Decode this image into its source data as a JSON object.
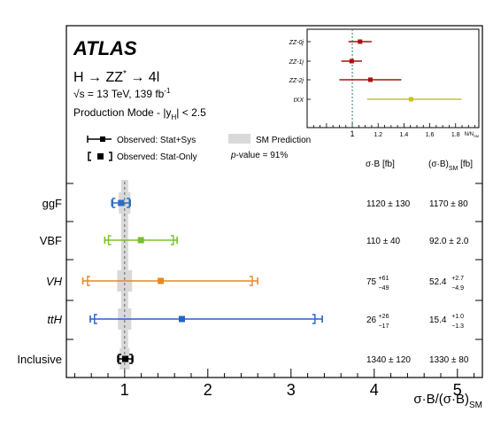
{
  "header": {
    "experiment": "ATLAS",
    "process_parts": [
      "H → ZZ",
      "*",
      " → 4l"
    ],
    "energy_prefix": "√s = 13 TeV, 139 fb",
    "energy_sup": "-1",
    "mode_prefix": "Production Mode - |y",
    "mode_sub": "H",
    "mode_suffix": "| < 2.5"
  },
  "legend": {
    "observed_stat_sys": "Observed: Stat+Sys",
    "observed_stat_only": "Observed: Stat-Only",
    "sm_prediction": "SM Prediction",
    "pvalue_prefix": "p",
    "pvalue_suffix": "-value = 91%"
  },
  "table_headers": {
    "sigma_b": "σ·B [fb]",
    "sigma_b_sm": "(σ·B)",
    "sm_sub": "SM",
    "sm_unit": " [fb]"
  },
  "colors": {
    "ggF": "#2c6fbf",
    "VBF": "#78c032",
    "VH": "#e58a1f",
    "ttH": "#2563c8",
    "Inclusive": "#000000",
    "sm_band": "#d9d9d9",
    "inset_red": "#aa1111",
    "inset_tXX": "#c8c220",
    "inset_vline": "#2e7d6b"
  },
  "chart_data": [
    {
      "type": "scatter",
      "title": "",
      "xlabel": "σ·B/(σ·B)SM",
      "xlabel_parts": [
        "σ·B/(σ·B)",
        "SM"
      ],
      "xlim": [
        0.3,
        5.3
      ],
      "xticks": [
        "1",
        "2",
        "3",
        "4",
        "5"
      ],
      "reference_line": 1,
      "categories": [
        "ggF",
        "VBF",
        "VH",
        "ttH",
        "Inclusive"
      ],
      "category_italic": [
        false,
        false,
        true,
        true,
        false
      ],
      "series": [
        {
          "name": "Observed: Stat+Sys",
          "values": [
            0.957,
            1.196,
            1.434,
            1.688,
            1.008
          ],
          "err_low": [
            0.111,
            0.435,
            0.937,
            1.101,
            0.09
          ],
          "err_high": [
            0.111,
            0.435,
            1.165,
            1.688,
            0.09
          ]
        },
        {
          "name": "Observed: Stat-Only",
          "values": [
            0.957,
            1.196,
            1.434,
            1.688,
            1.008
          ],
          "err_low": [
            0.1,
            0.39,
            0.88,
            1.05,
            0.08
          ],
          "err_high": [
            0.1,
            0.39,
            1.1,
            1.6,
            0.08
          ]
        }
      ],
      "sm_band_halfwidth": [
        0.07,
        0.022,
        0.09,
        0.08,
        0.06
      ],
      "table": {
        "sigma_b": [
          {
            "val": "1120 ± 130",
            "up": "",
            "down": ""
          },
          {
            "val": "110 ± 40",
            "up": "",
            "down": ""
          },
          {
            "val": "75",
            "up": "+61",
            "down": "−49"
          },
          {
            "val": "26",
            "up": "+26",
            "down": "−17"
          },
          {
            "val": "1340 ± 120",
            "up": "",
            "down": ""
          }
        ],
        "sigma_b_sm": [
          {
            "val": "1170 ± 80",
            "up": "",
            "down": ""
          },
          {
            "val": "92.0 ± 2.0",
            "up": "",
            "down": ""
          },
          {
            "val": "52.4",
            "up": "+2.7",
            "down": "−4.9"
          },
          {
            "val": "15.4",
            "up": "+1.0",
            "down": "−1.3"
          },
          {
            "val": "1330 ± 80",
            "up": "",
            "down": ""
          }
        ]
      }
    },
    {
      "type": "scatter",
      "title": "",
      "xlabel": "N/NSM",
      "xlabel_parts": [
        "N/N",
        "SM"
      ],
      "xlim": [
        0.65,
        1.98
      ],
      "xticks": [
        "1",
        "1.2",
        "1.4",
        "1.6",
        "1.8"
      ],
      "reference_line": 1,
      "categories": [
        "ZZ-0j",
        "ZZ-1j",
        "ZZ-2j",
        "tXX"
      ],
      "series": [
        {
          "name": "",
          "values": [
            1.06,
            0.995,
            1.14,
            1.455
          ],
          "err_low": [
            0.09,
            0.08,
            0.24,
            0.34
          ],
          "err_high": [
            0.09,
            0.08,
            0.24,
            0.39
          ]
        }
      ]
    }
  ]
}
